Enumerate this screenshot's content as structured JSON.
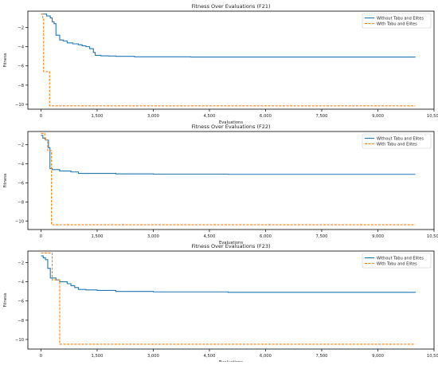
{
  "colors": {
    "series_1": "#1f77b4",
    "series_2": "#ff7f0e",
    "axes": "#000000"
  },
  "chart_data": [
    {
      "type": "line",
      "title": "Fitness Over Evaluations (F21)",
      "xlabel": "Evaluations",
      "ylabel": "Fitness",
      "xlim": [
        -350,
        10500
      ],
      "ylim": [
        -10.5,
        -0.3
      ],
      "xticks": [
        0,
        1500,
        3000,
        4500,
        6000,
        7500,
        9000,
        10500
      ],
      "xtick_labels": [
        "0",
        "1,500",
        "3,000",
        "4,500",
        "6,000",
        "7,500",
        "9,000",
        "10,500"
      ],
      "yticks": [
        -2,
        -4,
        -6,
        -8,
        -10
      ],
      "ytick_labels": [
        "−2",
        "−4",
        "−6",
        "−8",
        "−10"
      ],
      "legend_position": "top-right",
      "series": [
        {
          "name": "Without Tabu and Elites",
          "style": "solid",
          "x": [
            0,
            150,
            250,
            300,
            350,
            400,
            500,
            600,
            700,
            850,
            1000,
            1100,
            1200,
            1300,
            1400,
            1450,
            1600,
            1800,
            2000,
            2500,
            3000,
            4000,
            10000
          ],
          "y": [
            -0.6,
            -0.8,
            -1.0,
            -1.4,
            -1.6,
            -2.8,
            -3.3,
            -3.4,
            -3.6,
            -3.7,
            -3.8,
            -3.9,
            -4.0,
            -4.2,
            -4.6,
            -4.9,
            -4.95,
            -4.97,
            -5.0,
            -5.05,
            -5.05,
            -5.07,
            -5.08
          ]
        },
        {
          "name": "With Tabu and Elites",
          "style": "dashed",
          "x": [
            0,
            50,
            70,
            210,
            230,
            10000
          ],
          "y": [
            -0.6,
            -1.0,
            -6.6,
            -6.6,
            -10.15,
            -10.15
          ]
        }
      ]
    },
    {
      "type": "line",
      "title": "Fitness Over Evaluations (F22)",
      "xlabel": "Evaluations",
      "ylabel": "Fitness",
      "xlim": [
        -350,
        10500
      ],
      "ylim": [
        -10.9,
        -0.6
      ],
      "xticks": [
        0,
        1500,
        3000,
        4500,
        6000,
        7500,
        9000,
        10500
      ],
      "xtick_labels": [
        "0",
        "1,500",
        "3,000",
        "4,500",
        "6,000",
        "7,500",
        "9,000",
        "10,500"
      ],
      "yticks": [
        -2,
        -4,
        -6,
        -8,
        -10
      ],
      "ytick_labels": [
        "−2",
        "−4",
        "−6",
        "−8",
        "−10"
      ],
      "legend_position": "top-right",
      "series": [
        {
          "name": "Without Tabu and Elites",
          "style": "solid",
          "x": [
            0,
            50,
            120,
            200,
            240,
            300,
            500,
            800,
            1000,
            2000,
            3000,
            5000,
            10000
          ],
          "y": [
            -1.0,
            -1.3,
            -1.5,
            -2.3,
            -4.5,
            -4.6,
            -4.75,
            -4.85,
            -5.0,
            -5.05,
            -5.08,
            -5.1,
            -5.1
          ],
          "step": "post"
        },
        {
          "name": "With Tabu and Elites",
          "style": "dashed",
          "x": [
            0,
            100,
            180,
            230,
            280,
            10000
          ],
          "y": [
            -0.8,
            -1.5,
            -2.6,
            -2.6,
            -10.4,
            -10.4
          ],
          "step": "post"
        }
      ]
    },
    {
      "type": "line",
      "title": "Fitness Over Evaluations (F23)",
      "xlabel": "Evaluations",
      "ylabel": "Fitness",
      "xlim": [
        -350,
        10500
      ],
      "ylim": [
        -11.0,
        -0.8
      ],
      "xticks": [
        0,
        1500,
        3000,
        4500,
        6000,
        7500,
        9000,
        10500
      ],
      "xtick_labels": [
        "0",
        "1,500",
        "3,000",
        "4,500",
        "6,000",
        "7,500",
        "9,000",
        "10,500"
      ],
      "yticks": [
        -2,
        -4,
        -6,
        -8,
        -10
      ],
      "ytick_labels": [
        "−2",
        "−4",
        "−6",
        "−8",
        "−10"
      ],
      "legend_position": "top-right",
      "series": [
        {
          "name": "Without Tabu and Elites",
          "style": "solid",
          "x": [
            0,
            60,
            120,
            180,
            250,
            400,
            500,
            700,
            800,
            900,
            1000,
            1200,
            1500,
            2000,
            3000,
            5000,
            10000
          ],
          "y": [
            -1.3,
            -1.5,
            -1.7,
            -2.6,
            -3.6,
            -3.8,
            -4.0,
            -4.2,
            -4.4,
            -4.6,
            -4.8,
            -4.85,
            -4.9,
            -5.0,
            -5.05,
            -5.1,
            -5.12
          ],
          "step": "post"
        },
        {
          "name": "With Tabu and Elites",
          "style": "dashed",
          "x": [
            0,
            100,
            200,
            300,
            500,
            10000
          ],
          "y": [
            -1.0,
            -1.0,
            -1.0,
            -3.8,
            -10.5,
            -10.5
          ],
          "step": "post"
        }
      ]
    }
  ]
}
